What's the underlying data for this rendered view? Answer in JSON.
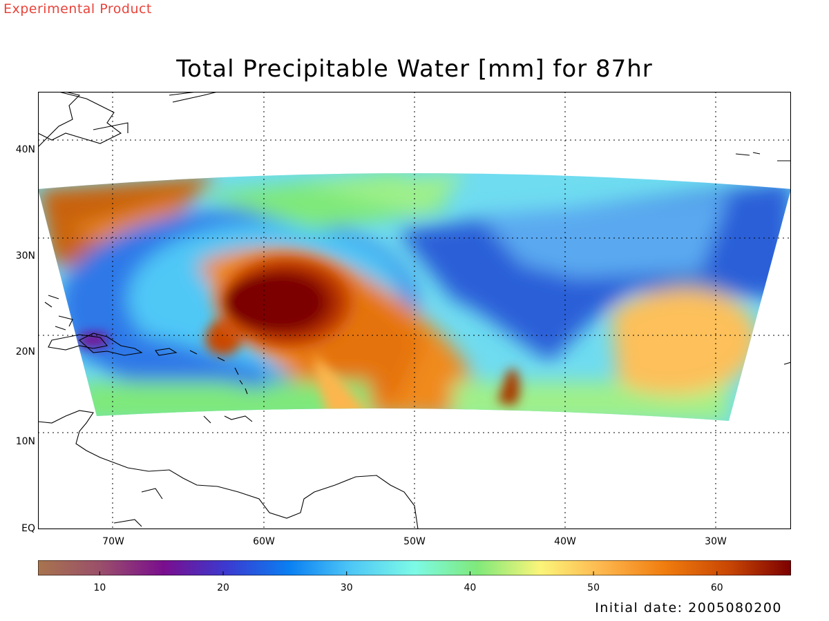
{
  "watermark": "Experimental Product",
  "title": "Total Precipitable Water [mm] for 87hr",
  "footer": {
    "init_label": "Initial date:",
    "init_value": "2005080200"
  },
  "map": {
    "lon_range": [
      -75,
      -25
    ],
    "lat_range": [
      0,
      45
    ],
    "lon_ticks": [
      {
        "value": -70,
        "label": "70W"
      },
      {
        "value": -60,
        "label": "60W"
      },
      {
        "value": -50,
        "label": "50W"
      },
      {
        "value": -40,
        "label": "40W"
      },
      {
        "value": -30,
        "label": "30W"
      }
    ],
    "lat_ticks": [
      {
        "value": 0,
        "label": "EQ"
      },
      {
        "value": 10,
        "label": "10N"
      },
      {
        "value": 20,
        "label": "20N"
      },
      {
        "value": 30,
        "label": "30N"
      },
      {
        "value": 40,
        "label": "40N"
      }
    ],
    "grid": "dotted",
    "projection": "mercator"
  },
  "colorbar": {
    "range": [
      5,
      66
    ],
    "ticks": [
      10,
      20,
      30,
      40,
      50,
      60
    ],
    "colors": [
      "#a8744e",
      "#9a4f6a",
      "#7a0e8e",
      "#3b3ad0",
      "#0a7ff2",
      "#4fc8f6",
      "#7dfae6",
      "#7fe97a",
      "#fbf57a",
      "#fdb64d",
      "#f07c0e",
      "#c94704",
      "#7c0000"
    ]
  }
}
